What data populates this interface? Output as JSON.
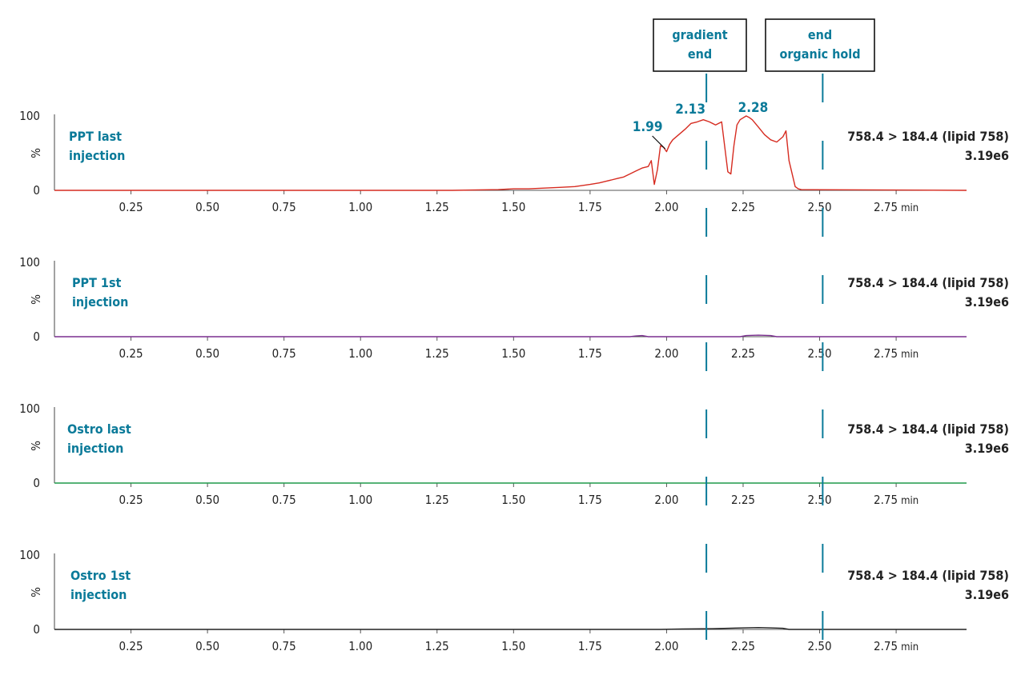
{
  "chart_data": [
    {
      "type": "line",
      "panel_label": [
        "PPT last",
        "injection"
      ],
      "trace_label": "758.4 > 184.4 (lipid 758)",
      "intensity": "3.19e6",
      "xlim": [
        0.0,
        2.98
      ],
      "ylim": [
        0,
        100
      ],
      "y_ticks": [
        "100",
        "0"
      ],
      "ylabel": "%",
      "x_ticks": [
        0.25,
        0.5,
        0.75,
        1.0,
        1.25,
        1.5,
        1.75,
        2.0,
        2.25,
        2.5,
        2.75
      ],
      "x_tick_labels": [
        "0.25",
        "0.50",
        "0.75",
        "1.00",
        "1.25",
        "1.50",
        "1.75",
        "2.00",
        "2.25",
        "2.50",
        "2.75 min"
      ],
      "color": "#d62b20",
      "series": [
        {
          "x": [
            0.0,
            1.3,
            1.45,
            1.5,
            1.55,
            1.6,
            1.65,
            1.7,
            1.75,
            1.78,
            1.8,
            1.82,
            1.84,
            1.86,
            1.88,
            1.9,
            1.92,
            1.94,
            1.95,
            1.96,
            1.97,
            1.98,
            1.99,
            2.0,
            2.01,
            2.02,
            2.04,
            2.06,
            2.08,
            2.1,
            2.12,
            2.14,
            2.16,
            2.18,
            2.2,
            2.21,
            2.22,
            2.23,
            2.24,
            2.26,
            2.27,
            2.28,
            2.3,
            2.32,
            2.34,
            2.36,
            2.38,
            2.39,
            2.4,
            2.42,
            2.43,
            2.44,
            2.98
          ],
          "y": [
            0,
            0,
            1,
            2,
            2,
            3,
            4,
            5,
            8,
            10,
            12,
            14,
            16,
            18,
            22,
            26,
            30,
            32,
            40,
            8,
            28,
            60,
            58,
            52,
            62,
            68,
            75,
            82,
            90,
            92,
            95,
            92,
            88,
            92,
            25,
            22,
            60,
            88,
            95,
            100,
            98,
            95,
            85,
            75,
            68,
            65,
            72,
            80,
            40,
            5,
            2,
            1,
            0
          ]
        }
      ]
    },
    {
      "type": "line",
      "panel_label": [
        "PPT 1st",
        "injection"
      ],
      "trace_label": "758.4 > 184.4 (lipid 758)",
      "intensity": "3.19e6",
      "xlim": [
        0.0,
        2.98
      ],
      "ylim": [
        0,
        100
      ],
      "y_ticks": [
        "100",
        "0"
      ],
      "ylabel": "%",
      "x_ticks": [
        0.25,
        0.5,
        0.75,
        1.0,
        1.25,
        1.5,
        1.75,
        2.0,
        2.25,
        2.5,
        2.75
      ],
      "x_tick_labels": [
        "0.25",
        "0.50",
        "0.75",
        "1.00",
        "1.25",
        "1.50",
        "1.75",
        "2.00",
        "2.25",
        "2.50",
        "2.75 min"
      ],
      "color": "#7a2f8f",
      "series": [
        {
          "x": [
            0.0,
            1.88,
            1.9,
            1.92,
            1.94,
            2.24,
            2.26,
            2.3,
            2.34,
            2.36,
            2.98
          ],
          "y": [
            0,
            0,
            1,
            1.5,
            0,
            0,
            1.5,
            2,
            1.5,
            0,
            0
          ]
        }
      ]
    },
    {
      "type": "line",
      "panel_label": [
        "Ostro last",
        "injection"
      ],
      "trace_label": "758.4 > 184.4 (lipid 758)",
      "intensity": "3.19e6",
      "xlim": [
        0.0,
        2.98
      ],
      "ylim": [
        0,
        100
      ],
      "y_ticks": [
        "100",
        "0"
      ],
      "ylabel": "%",
      "x_ticks": [
        0.25,
        0.5,
        0.75,
        1.0,
        1.25,
        1.5,
        1.75,
        2.0,
        2.25,
        2.5,
        2.75
      ],
      "x_tick_labels": [
        "0.25",
        "0.50",
        "0.75",
        "1.00",
        "1.25",
        "1.50",
        "1.75",
        "2.00",
        "2.25",
        "2.50",
        "2.75 min"
      ],
      "color": "#1f9a4a",
      "series": [
        {
          "x": [
            0.0,
            2.98
          ],
          "y": [
            0,
            0
          ]
        }
      ]
    },
    {
      "type": "line",
      "panel_label": [
        "Ostro 1st",
        "injection"
      ],
      "trace_label": "758.4 > 184.4 (lipid 758)",
      "intensity": "3.19e6",
      "xlim": [
        0.0,
        2.98
      ],
      "ylim": [
        0,
        100
      ],
      "y_ticks": [
        "100",
        "0"
      ],
      "ylabel": "%",
      "x_ticks": [
        0.25,
        0.5,
        0.75,
        1.0,
        1.25,
        1.5,
        1.75,
        2.0,
        2.25,
        2.5,
        2.75
      ],
      "x_tick_labels": [
        "0.25",
        "0.50",
        "0.75",
        "1.00",
        "1.25",
        "1.50",
        "1.75",
        "2.00",
        "2.25",
        "2.50",
        "2.75 min"
      ],
      "color": "#222222",
      "series": [
        {
          "x": [
            0.0,
            1.98,
            2.05,
            2.15,
            2.25,
            2.3,
            2.34,
            2.38,
            2.4,
            2.98
          ],
          "y": [
            0,
            0,
            0.5,
            1,
            2,
            2.5,
            2,
            1.5,
            0,
            0
          ]
        }
      ]
    }
  ],
  "peak_labels": [
    {
      "text": "1.99",
      "x": 1.99,
      "y": 58
    },
    {
      "text": "2.13",
      "x": 2.13,
      "y": 95
    },
    {
      "text": "2.28",
      "x": 2.28,
      "y": 100
    }
  ],
  "markers": [
    {
      "lines": [
        "gradient",
        "end"
      ],
      "x": 2.13
    },
    {
      "lines": [
        "end",
        "organic hold"
      ],
      "x": 2.51
    }
  ],
  "colors": {
    "label": "#0a7a99",
    "marker": "#0a7a99",
    "axis": "#222222"
  }
}
